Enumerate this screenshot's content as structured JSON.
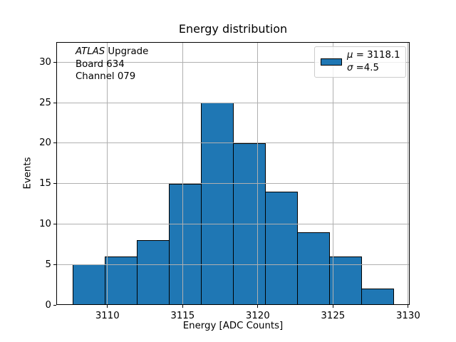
{
  "chart_data": {
    "type": "bar",
    "subtype": "histogram",
    "title": "Energy distribution",
    "xlabel": "Energy [ADC Counts]",
    "ylabel": "Events",
    "bin_edges": [
      3107.7,
      3109.84,
      3111.97,
      3114.11,
      3116.24,
      3118.38,
      3120.51,
      3122.65,
      3124.78,
      3126.92,
      3129.05
    ],
    "counts": [
      5,
      6,
      8,
      15,
      25,
      20,
      14,
      9,
      6,
      2
    ],
    "xlim": [
      3106.6,
      3130.1
    ],
    "ylim": [
      0,
      32.5
    ],
    "xticks": [
      3110,
      3115,
      3120,
      3125,
      3130
    ],
    "yticks": [
      0,
      5,
      10,
      15,
      20,
      25,
      30
    ],
    "grid": true,
    "legend_position": "upper right",
    "colors": {
      "bar_fill": "#1f77b4",
      "bar_edge": "#000000",
      "grid": "#b0b0b0",
      "spine": "#000000",
      "text": "#000000",
      "legend_border": "#cccccc"
    },
    "legend": {
      "mu_symbol": "μ",
      "mu_text": " = 3118.1",
      "sigma_symbol": "σ",
      "sigma_text": " =4.5"
    },
    "annotation": {
      "brand": "ATLAS",
      "brand_suffix": " Upgrade",
      "line2": "Board 634",
      "line3": "Channel 079"
    }
  }
}
